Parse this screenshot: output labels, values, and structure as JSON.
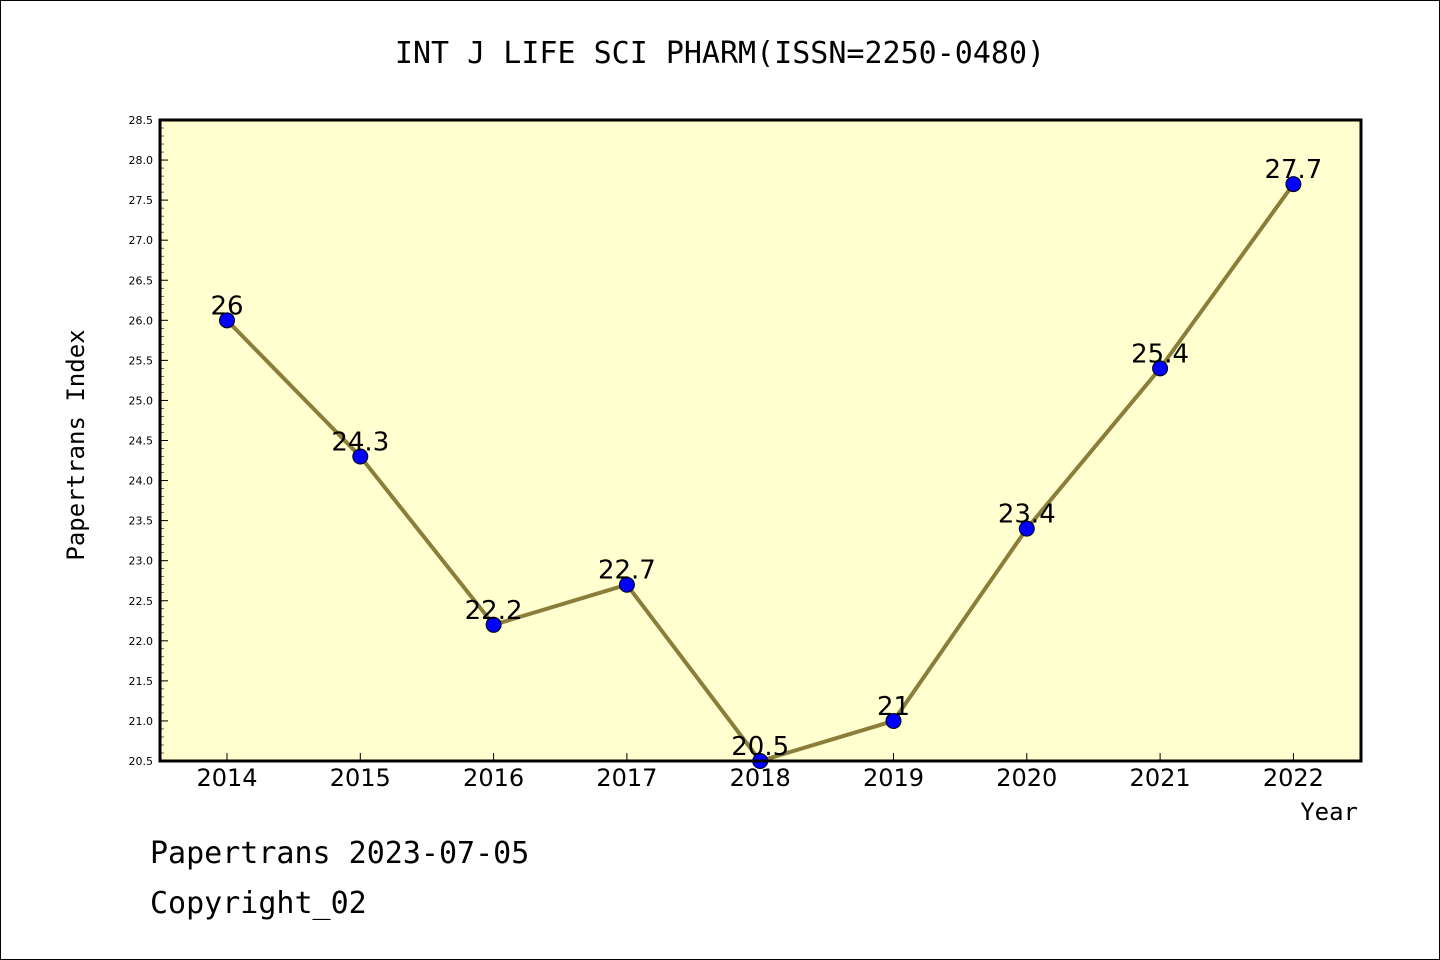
{
  "chart_data": {
    "type": "line",
    "title": "INT J LIFE SCI PHARM(ISSN=2250-0480)",
    "xlabel": "Year",
    "ylabel": "Papertrans Index",
    "categories": [
      "2014",
      "2015",
      "2016",
      "2017",
      "2018",
      "2019",
      "2020",
      "2021",
      "2022"
    ],
    "series": [
      {
        "values": [
          26,
          24.3,
          22.2,
          22.7,
          20.5,
          21,
          23.4,
          25.4,
          27.7
        ],
        "data_labels": [
          "26",
          "24.3",
          "22.2",
          "22.7",
          "20.5",
          "21",
          "23.4",
          "25.4",
          "27.7"
        ]
      }
    ],
    "ylim": [
      20.5,
      28.5
    ],
    "yticks": [
      "20.5",
      "21.0",
      "21.5",
      "22.0",
      "22.5",
      "23.0",
      "23.5",
      "24.0",
      "24.5",
      "25.0",
      "25.5",
      "26.0",
      "26.5",
      "27.0",
      "27.5",
      "28.0",
      "28.5"
    ],
    "grid": false,
    "colors": {
      "plot_background": "#ffffd0",
      "line": "#8b7d3a",
      "marker": "#0000ff"
    }
  },
  "footer": {
    "line1": "Papertrans 2023-07-05",
    "line2": "Copyright_02"
  }
}
